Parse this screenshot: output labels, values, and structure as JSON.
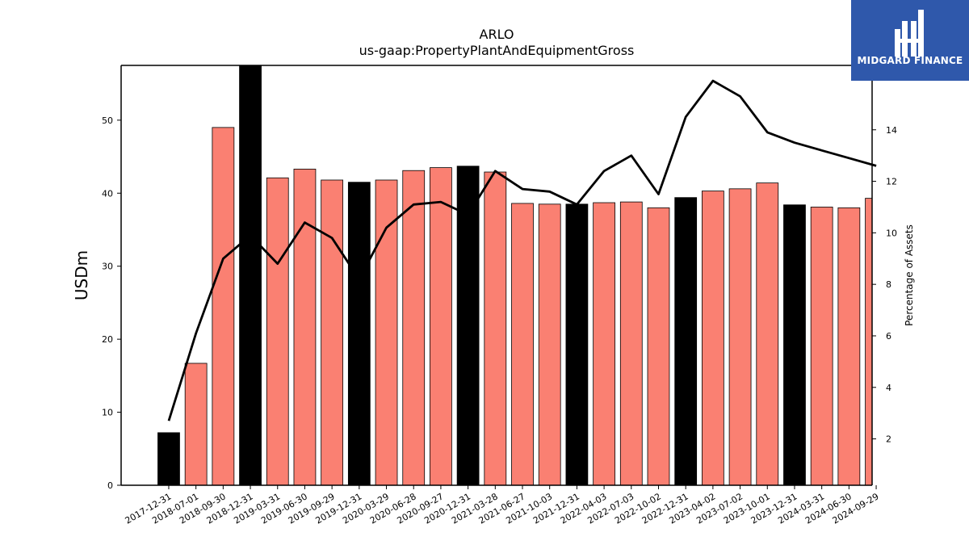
{
  "brand": {
    "name": "MIDGARD FINANCE",
    "bg_color": "#2f58ab",
    "icon": "midgard-logo-icon"
  },
  "chart_data": {
    "type": "bar",
    "title": "ARLO",
    "subtitle": "us-gaap:PropertyPlantAndEquipmentGross",
    "ylabel": "USDm",
    "y2label": "Percentage of Assets",
    "ylim": [
      0,
      57.5
    ],
    "y2lim": [
      0.2,
      16.5
    ],
    "yticks": [
      0,
      10,
      20,
      30,
      40,
      50
    ],
    "y2ticks": [
      2,
      4,
      6,
      8,
      10,
      12,
      14
    ],
    "categories": [
      "2017-12-31",
      "2018-07-01",
      "2018-09-30",
      "2018-12-31",
      "2019-03-31",
      "2019-06-30",
      "2019-09-29",
      "2019-12-31",
      "2020-03-29",
      "2020-06-28",
      "2020-09-27",
      "2020-12-31",
      "2021-03-28",
      "2021-06-27",
      "2021-10-03",
      "2021-12-31",
      "2022-04-03",
      "2022-07-03",
      "2022-10-02",
      "2022-12-31",
      "2023-04-02",
      "2023-07-02",
      "2023-10-01",
      "2023-12-31",
      "2024-03-31",
      "2024-06-30",
      "2024-09-29"
    ],
    "bar_colors": {
      "annual": "#000000",
      "quarterly": "#fa8072"
    },
    "annual_flags": [
      true,
      false,
      false,
      true,
      false,
      false,
      false,
      true,
      false,
      false,
      false,
      true,
      false,
      false,
      false,
      true,
      false,
      false,
      false,
      true,
      false,
      false,
      false,
      true,
      false,
      false,
      false
    ],
    "series": [
      {
        "values": [
          7.2,
          16.7,
          49.0,
          58.0,
          42.1,
          43.3,
          41.8,
          41.5,
          41.8,
          43.1,
          43.5,
          43.7,
          42.9,
          38.6,
          38.5,
          38.5,
          38.7,
          38.8,
          38.0,
          39.4,
          40.3,
          40.6,
          41.4,
          38.4,
          38.1,
          38.0,
          39.3
        ]
      },
      {
        "values": [
          2.7,
          6.1,
          9.0,
          9.9,
          8.8,
          10.4,
          9.8,
          8.2,
          10.2,
          11.1,
          11.2,
          10.7,
          12.4,
          11.7,
          11.6,
          11.1,
          12.4,
          13.0,
          11.5,
          14.5,
          15.9,
          15.3,
          13.9,
          13.5,
          13.2,
          12.9,
          12.6
        ],
        "axis": "right",
        "color": "#000000"
      }
    ]
  }
}
